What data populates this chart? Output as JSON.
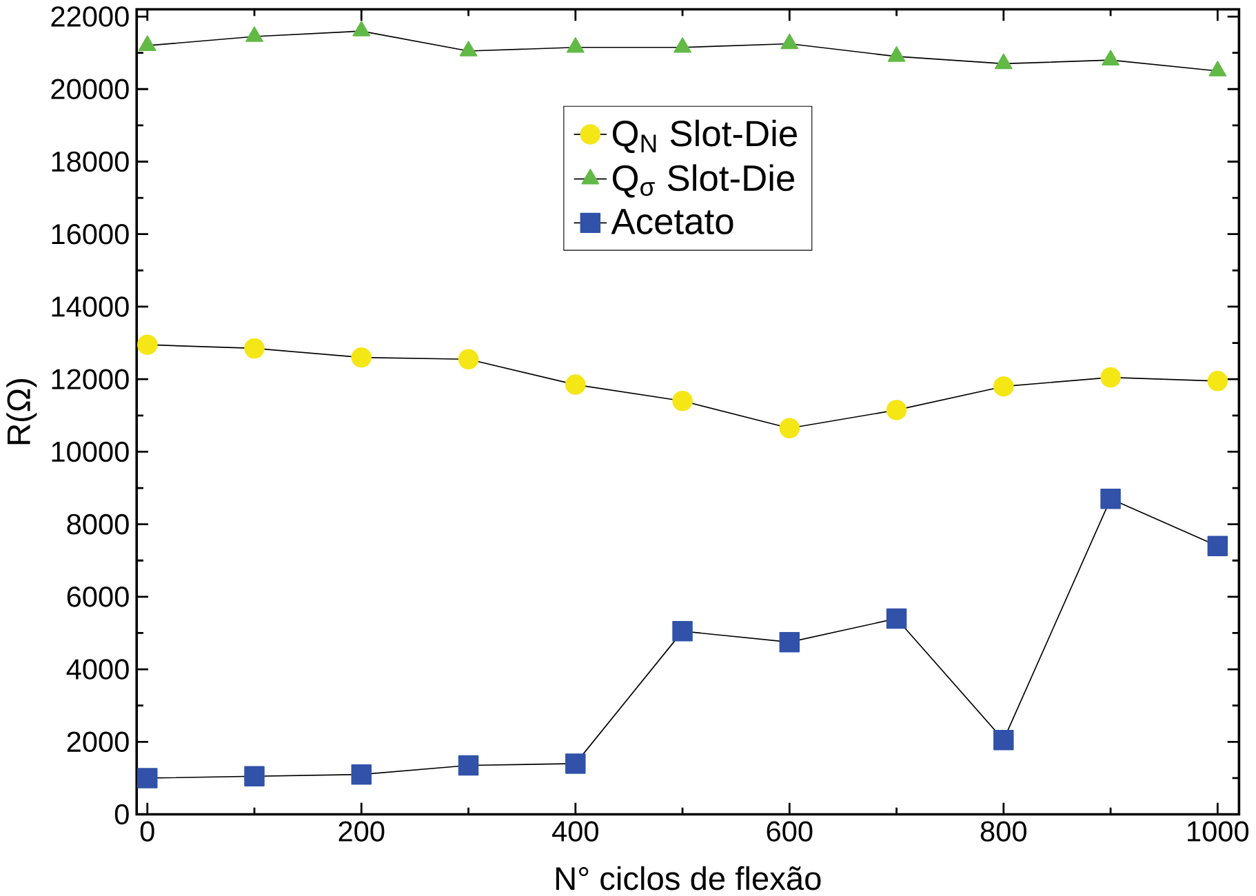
{
  "chart_data": {
    "type": "line",
    "xlabel": "N° ciclos de flexão",
    "ylabel": "R(Ω)",
    "x": [
      0,
      100,
      200,
      300,
      400,
      500,
      600,
      700,
      800,
      900,
      1000
    ],
    "series": [
      {
        "name": "Q$_{N}$ Slot-Die",
        "color": "#f5e616",
        "marker": "circle",
        "values": [
          12950,
          12850,
          12600,
          12550,
          11850,
          11400,
          10650,
          11150,
          11800,
          12050,
          11950
        ]
      },
      {
        "name": "Q$_{σ}$ Slot-Die",
        "color": "#62b946",
        "marker": "triangle",
        "values": [
          21200,
          21450,
          21600,
          21050,
          21150,
          21150,
          21250,
          20900,
          20700,
          20800,
          20500
        ]
      },
      {
        "name": "Acetato",
        "color": "#3152a8",
        "marker": "square",
        "values": [
          1000,
          1050,
          1100,
          1350,
          1400,
          5050,
          4750,
          5400,
          2050,
          8700,
          7400
        ]
      }
    ],
    "xlim": [
      -10,
      1020
    ],
    "ylim": [
      0,
      22200
    ],
    "xticks": [
      0,
      200,
      400,
      600,
      800,
      1000
    ],
    "yticks": [
      0,
      2000,
      4000,
      6000,
      8000,
      10000,
      12000,
      14000,
      16000,
      18000,
      20000,
      22000
    ],
    "legend": "top",
    "line_style": "solid"
  }
}
